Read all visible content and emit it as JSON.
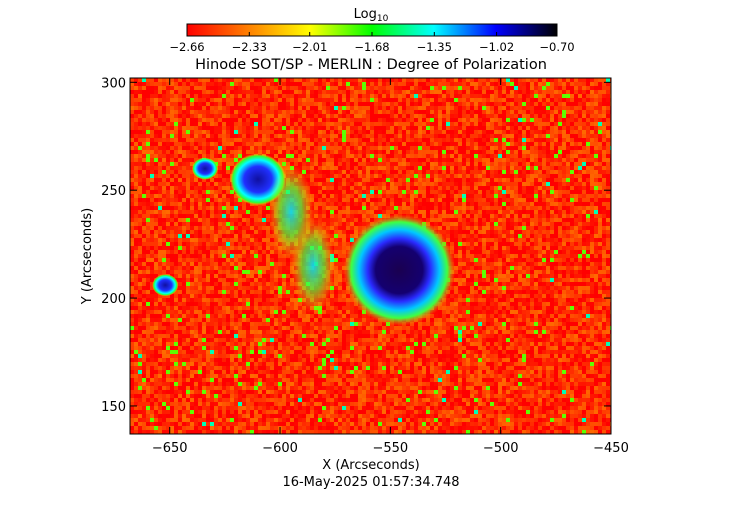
{
  "chart_data": {
    "type": "heatmap",
    "title": "Hinode SOT/SP - MERLIN : Degree of Polarization",
    "xlabel": "X (Arcseconds)",
    "ylabel": "Y (Arcseconds)",
    "xlim": [
      -668,
      -450
    ],
    "ylim": [
      137,
      302
    ],
    "xticks": [
      -650,
      -600,
      -550,
      -500,
      -450
    ],
    "yticks": [
      150,
      200,
      250,
      300
    ],
    "colorbar": {
      "label_base": "Log",
      "label_sub": "10",
      "min": -2.66,
      "max": -0.7,
      "ticks": [
        -2.66,
        -2.33,
        -2.01,
        -1.68,
        -1.35,
        -1.02,
        -0.7
      ],
      "colormap": [
        "#ff0000",
        "#ff8000",
        "#ffff00",
        "#00ff00",
        "#00ffff",
        "#0000ff",
        "#000000"
      ],
      "placement": "top"
    },
    "features": [
      {
        "kind": "sunspot",
        "x": -546,
        "y": 213,
        "log10_value": -0.75
      },
      {
        "kind": "pore",
        "x": -610,
        "y": 255,
        "log10_value": -1.1
      },
      {
        "kind": "pore",
        "x": -634,
        "y": 260,
        "log10_value": -1.2
      },
      {
        "kind": "pore",
        "x": -652,
        "y": 206,
        "log10_value": -1.25
      },
      {
        "kind": "plage",
        "x": -585,
        "y": 215,
        "log10_value": -1.55
      },
      {
        "kind": "plage",
        "x": -595,
        "y": 240,
        "log10_value": -1.6
      }
    ],
    "background_log10_value": -2.55
  },
  "timestamp": "16-May-2025 01:57:34.748"
}
